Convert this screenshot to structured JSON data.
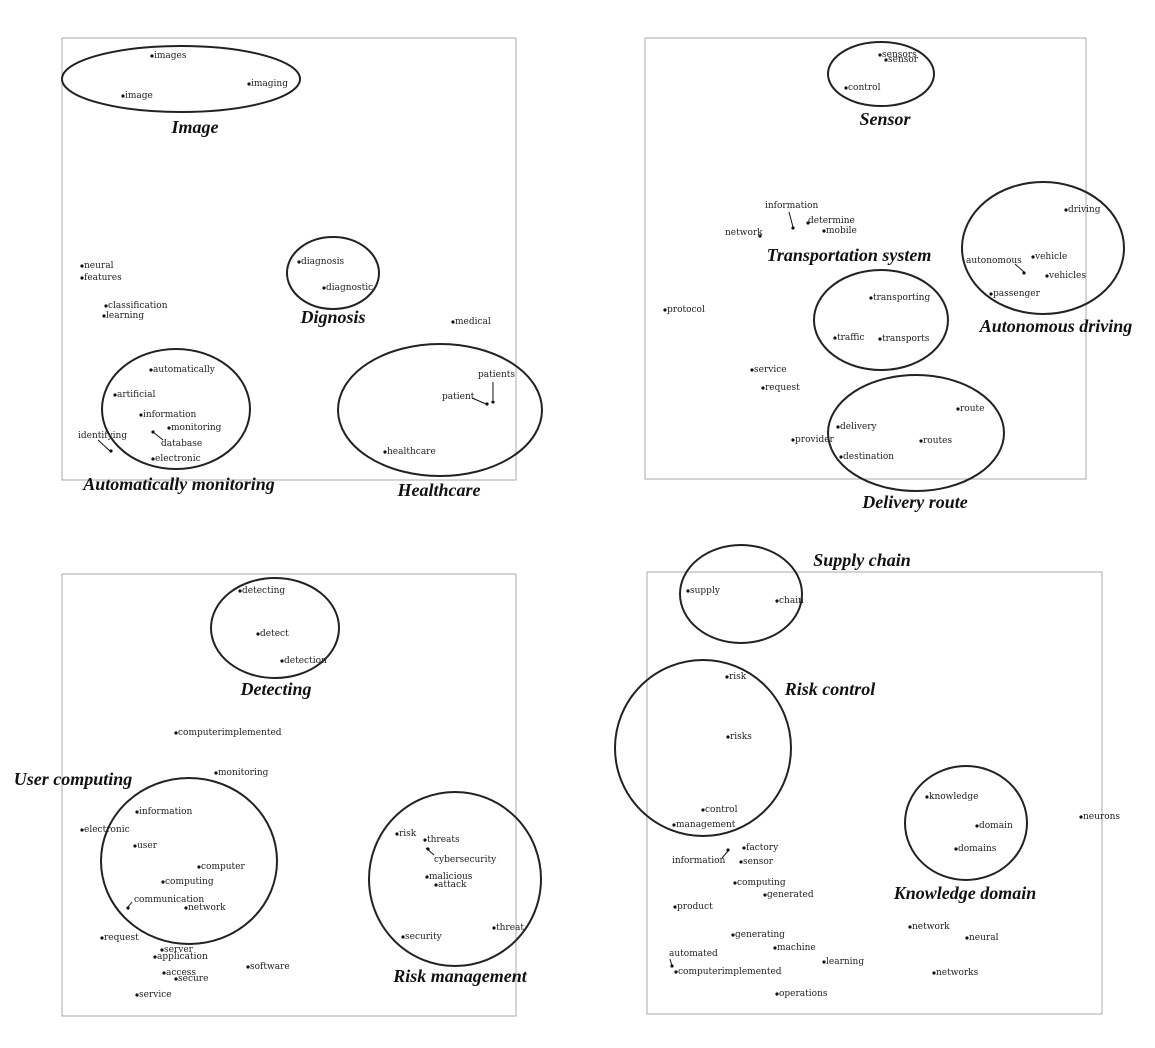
{
  "panels": [
    {
      "id": "p1",
      "clusters": [
        {
          "label": "Image"
        },
        {
          "label": "Dignosis"
        },
        {
          "label": "Automatically monitoring"
        },
        {
          "label": "Healthcare"
        }
      ],
      "words": [
        "images",
        "imaging",
        "image",
        "neural",
        "features",
        "classification",
        "learning",
        "diagnosis",
        "diagnostic",
        "medical",
        "automatically",
        "artificial",
        "information",
        "monitoring",
        "identifying",
        "database",
        "electronic",
        "patients",
        "patient",
        "healthcare"
      ]
    },
    {
      "id": "p2",
      "clusters": [
        {
          "label": "Sensor"
        },
        {
          "label": "Transportation system"
        },
        {
          "label": "Autonomous driving"
        },
        {
          "label": "Delivery route"
        }
      ],
      "words": [
        "sensors",
        "sensor",
        "control",
        "information",
        "determine",
        "mobile",
        "network",
        "driving",
        "autonomous",
        "vehicle",
        "vehicles",
        "passenger",
        "protocol",
        "transporting",
        "traffic",
        "transports",
        "service",
        "request",
        "route",
        "delivery",
        "provider",
        "routes",
        "destination"
      ]
    },
    {
      "id": "p3",
      "clusters": [
        {
          "label": "Detecting"
        },
        {
          "label": "User computing"
        },
        {
          "label": "Risk management"
        }
      ],
      "words": [
        "detecting",
        "detect",
        "detection",
        "computerimplemented",
        "monitoring",
        "information",
        "electronic",
        "user",
        "computer",
        "computing",
        "communication",
        "network",
        "risk",
        "threats",
        "cybersecurity",
        "malicious",
        "attack",
        "request",
        "server",
        "application",
        "software",
        "access",
        "secure",
        "service",
        "security",
        "threat"
      ]
    },
    {
      "id": "p4",
      "clusters": [
        {
          "label": "Supply chain"
        },
        {
          "label": "Risk control"
        },
        {
          "label": "Knowledge domain"
        }
      ],
      "words": [
        "supply",
        "chain",
        "risk",
        "risks",
        "control",
        "management",
        "knowledge",
        "domain",
        "domains",
        "neurons",
        "factory",
        "information",
        "sensor",
        "computing",
        "generated",
        "product",
        "generating",
        "machine",
        "network",
        "neural",
        "automated",
        "learning",
        "computerimplemented",
        "networks",
        "operations"
      ]
    }
  ]
}
